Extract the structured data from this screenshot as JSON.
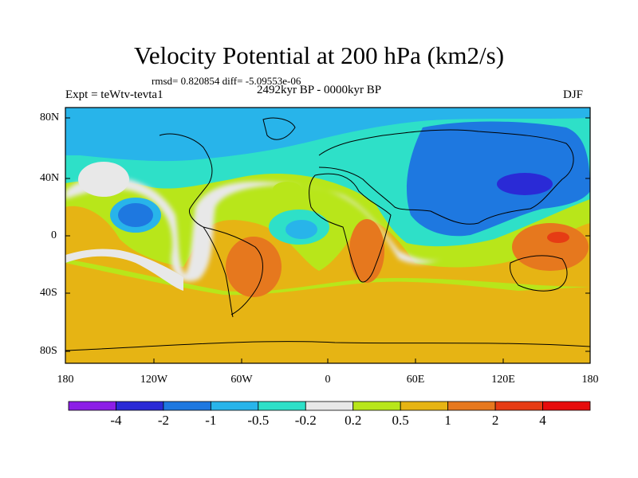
{
  "figure": {
    "title": "Velocity Potential at 200 hPa (km2/s)",
    "stats_text": "rmsd= 0.820854 diff= -5.09553e-06",
    "left_label": "Expt = teWtv-tevta1",
    "center_label": "2492kyr BP - 0000kyr BP",
    "right_label": "DJF"
  },
  "map": {
    "projection": "cylindrical equidistant",
    "lon_range": [
      -180,
      180
    ],
    "lat_range": [
      -90,
      90
    ],
    "lat_ticks": [
      "80N",
      "40N",
      "0",
      "40S",
      "80S"
    ],
    "lon_ticks": [
      "180",
      "120W",
      "60W",
      "0",
      "60E",
      "120E",
      "180"
    ],
    "field": "velocity potential anomaly (km2/s)"
  },
  "colorbar": {
    "labels": [
      "-4",
      "-2",
      "-1",
      "-0.5",
      "-0.2",
      "0.2",
      "0.5",
      "1",
      "2",
      "4"
    ],
    "colors": [
      "#8c1ee6",
      "#2a2ad6",
      "#1e78e0",
      "#28b4ea",
      "#2ee0c8",
      "#e8e8e8",
      "#b8e61a",
      "#e6b414",
      "#e6781e",
      "#e63c14",
      "#e60c0c"
    ]
  }
}
